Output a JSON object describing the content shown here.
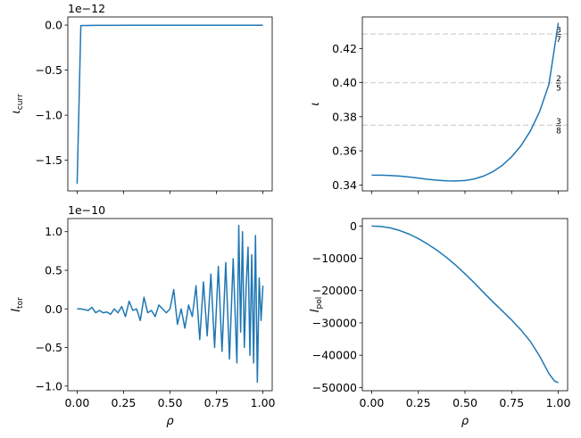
{
  "chart_data": [
    {
      "type": "line",
      "ylabel": "ι_curr",
      "ylabel_main": "ι",
      "ylabel_sub": "curr",
      "offset_text": "1e−12",
      "xlim": [
        -0.05,
        1.05
      ],
      "ylim": [
        -1.84,
        0.09
      ],
      "yticks": [
        0.0,
        -0.5,
        -1.0,
        -1.5
      ],
      "ytick_labels": [
        "0.0",
        "−0.5",
        "−1.0",
        "−1.5"
      ],
      "xticks": [
        0.0,
        0.25,
        0.5,
        0.75,
        1.0
      ],
      "show_xtick_labels": false,
      "series": [
        {
          "color": "#1f77b4",
          "x": [
            0.0,
            0.01,
            0.02,
            0.1,
            0.3,
            0.5,
            0.7,
            0.9,
            1.0
          ],
          "y": [
            -1.76,
            -0.9,
            -0.005,
            -0.003,
            -0.002,
            -0.002,
            -0.001,
            -0.001,
            -0.001
          ]
        }
      ]
    },
    {
      "type": "line",
      "ylabel": "ι",
      "ylabel_main": "ι",
      "ylabel_sub": "",
      "offset_text": "",
      "xlim": [
        -0.05,
        1.05
      ],
      "ylim": [
        0.3365,
        0.4385
      ],
      "yticks": [
        0.34,
        0.36,
        0.38,
        0.4,
        0.42
      ],
      "ytick_labels": [
        "0.34",
        "0.36",
        "0.38",
        "0.40",
        "0.42"
      ],
      "xticks": [
        0.0,
        0.25,
        0.5,
        0.75,
        1.0
      ],
      "show_xtick_labels": false,
      "hlines": [
        {
          "y": 0.42857,
          "num": "3",
          "den": "7"
        },
        {
          "y": 0.4,
          "num": "2",
          "den": "5"
        },
        {
          "y": 0.375,
          "num": "3",
          "den": "8"
        }
      ],
      "series": [
        {
          "color": "#1f77b4",
          "x": [
            0.0,
            0.05,
            0.1,
            0.15,
            0.2,
            0.25,
            0.3,
            0.35,
            0.4,
            0.45,
            0.5,
            0.55,
            0.6,
            0.65,
            0.7,
            0.75,
            0.8,
            0.85,
            0.9,
            0.95,
            1.0
          ],
          "y": [
            0.3457,
            0.3457,
            0.3455,
            0.3452,
            0.3447,
            0.344,
            0.3433,
            0.3428,
            0.3424,
            0.3423,
            0.3426,
            0.3435,
            0.3452,
            0.3478,
            0.3515,
            0.3565,
            0.363,
            0.3715,
            0.383,
            0.399,
            0.435
          ]
        }
      ]
    },
    {
      "type": "line",
      "ylabel": "I_tor",
      "ylabel_main": "I",
      "ylabel_sub": "tor",
      "offset_text": "1e−10",
      "xlim": [
        -0.05,
        1.05
      ],
      "ylim": [
        -1.06,
        1.17
      ],
      "yticks": [
        1.0,
        0.5,
        0.0,
        -0.5,
        -1.0
      ],
      "ytick_labels": [
        "1.0",
        "0.5",
        "0.0",
        "−0.5",
        "−1.0"
      ],
      "xticks": [
        0.0,
        0.25,
        0.5,
        0.75,
        1.0
      ],
      "xtick_labels": [
        "0.00",
        "0.25",
        "0.50",
        "0.75",
        "1.00"
      ],
      "show_xtick_labels": true,
      "xlabel": "ρ",
      "series": [
        {
          "color": "#1f77b4",
          "x": [
            0.0,
            0.02,
            0.04,
            0.06,
            0.08,
            0.1,
            0.12,
            0.14,
            0.16,
            0.18,
            0.2,
            0.22,
            0.24,
            0.26,
            0.28,
            0.3,
            0.32,
            0.34,
            0.36,
            0.38,
            0.4,
            0.42,
            0.44,
            0.46,
            0.48,
            0.5,
            0.52,
            0.54,
            0.56,
            0.58,
            0.6,
            0.62,
            0.64,
            0.66,
            0.68,
            0.7,
            0.72,
            0.74,
            0.76,
            0.78,
            0.8,
            0.82,
            0.84,
            0.86,
            0.87,
            0.88,
            0.89,
            0.9,
            0.91,
            0.92,
            0.93,
            0.94,
            0.95,
            0.96,
            0.97,
            0.98,
            0.99,
            1.0
          ],
          "y": [
            0.0,
            0.0,
            -0.01,
            -0.02,
            0.02,
            -0.05,
            -0.02,
            -0.05,
            -0.04,
            -0.07,
            0.0,
            -0.05,
            0.03,
            -0.1,
            0.1,
            -0.02,
            0.0,
            -0.15,
            0.15,
            -0.05,
            -0.02,
            -0.1,
            0.05,
            0.0,
            -0.05,
            0.0,
            0.25,
            -0.2,
            0.0,
            -0.25,
            0.05,
            -0.1,
            0.3,
            -0.4,
            0.35,
            -0.35,
            0.45,
            -0.5,
            0.55,
            -0.55,
            0.6,
            -0.65,
            0.65,
            -0.7,
            1.08,
            -0.3,
            1.0,
            -0.5,
            0.3,
            0.8,
            -0.6,
            0.7,
            -0.7,
            0.95,
            -0.95,
            0.4,
            -0.15,
            0.3
          ]
        }
      ]
    },
    {
      "type": "line",
      "ylabel": "I_pol",
      "ylabel_main": "I",
      "ylabel_sub": "pol",
      "offset_text": "",
      "xlim": [
        -0.05,
        1.05
      ],
      "ylim": [
        -51000,
        2300
      ],
      "yticks": [
        0,
        -10000,
        -20000,
        -30000,
        -40000,
        -50000
      ],
      "ytick_labels": [
        "0",
        "−10000",
        "−20000",
        "−30000",
        "−40000",
        "−50000"
      ],
      "xticks": [
        0.0,
        0.25,
        0.5,
        0.75,
        1.0
      ],
      "xtick_labels": [
        "0.00",
        "0.25",
        "0.50",
        "0.75",
        "1.00"
      ],
      "show_xtick_labels": true,
      "xlabel": "ρ",
      "series": [
        {
          "color": "#1f77b4",
          "x": [
            0.0,
            0.05,
            0.1,
            0.15,
            0.2,
            0.25,
            0.3,
            0.35,
            0.4,
            0.45,
            0.5,
            0.55,
            0.6,
            0.65,
            0.7,
            0.75,
            0.8,
            0.85,
            0.9,
            0.95,
            0.98,
            1.0
          ],
          "y": [
            0,
            -150,
            -600,
            -1400,
            -2500,
            -3900,
            -5600,
            -7500,
            -9700,
            -12100,
            -14800,
            -17600,
            -20600,
            -23500,
            -26300,
            -29100,
            -32200,
            -35700,
            -40300,
            -45700,
            -48000,
            -48500
          ]
        }
      ]
    }
  ]
}
